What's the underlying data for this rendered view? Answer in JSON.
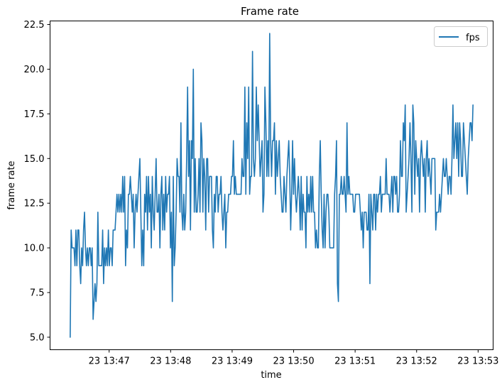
{
  "chart_data": {
    "type": "line",
    "title": "Frame rate",
    "xlabel": "time",
    "ylabel": "frame rate",
    "x_start_label": "23 13:46:22",
    "x_end_label": "23 13:52:55",
    "x_ticks": [
      "23 13:47",
      "23 13:48",
      "23 13:49",
      "23 13:50",
      "23 13:51",
      "23 13:52",
      "23 13:53"
    ],
    "y_ticks": [
      "5.0",
      "7.5",
      "10.0",
      "12.5",
      "15.0",
      "17.5",
      "20.0",
      "22.5"
    ],
    "ylim": [
      4.3,
      22.7
    ],
    "grid": false,
    "legend": {
      "position": "top-right",
      "entries": [
        "fps"
      ]
    },
    "series": [
      {
        "name": "fps",
        "color": "#1f77b4",
        "values": [
          5,
          11,
          10,
          10,
          10,
          9,
          11,
          9,
          11,
          11,
          9,
          8,
          10,
          9,
          11,
          12,
          10,
          9,
          10,
          9,
          10,
          10,
          9,
          10,
          6,
          7,
          8,
          7,
          8,
          12,
          9,
          9,
          9,
          9,
          11,
          8,
          10,
          9,
          10,
          9,
          11,
          9,
          10,
          10,
          9,
          11,
          11,
          11,
          12,
          13,
          12,
          13,
          12,
          13,
          12,
          14,
          12,
          14,
          9,
          11,
          10,
          13,
          13,
          14,
          13,
          12,
          13,
          10,
          12,
          13,
          12,
          13,
          14,
          15,
          12,
          9,
          11,
          9,
          13,
          12,
          14,
          11,
          14,
          12,
          13,
          10,
          14,
          12,
          11,
          13,
          15,
          12,
          12,
          13,
          10,
          13,
          14,
          11,
          13,
          11,
          14,
          12,
          13,
          13,
          14,
          10,
          12,
          7,
          14,
          9,
          10,
          12,
          15,
          14,
          14,
          12,
          17,
          12,
          11,
          13,
          11,
          12,
          15,
          19,
          14,
          16,
          11,
          16,
          15,
          20,
          12,
          15,
          12,
          12,
          13,
          15,
          12,
          17,
          16,
          12,
          15,
          14,
          11,
          15,
          15,
          12,
          14,
          14,
          14,
          11,
          10,
          13,
          12,
          14,
          14,
          12,
          13,
          13,
          14,
          12,
          11,
          12,
          13,
          10,
          12,
          12,
          13,
          13,
          13,
          14,
          14,
          16,
          13,
          14,
          13,
          13,
          13,
          13,
          13,
          13,
          15,
          14,
          14,
          19,
          13,
          17,
          15,
          19,
          13,
          14,
          14,
          21,
          15,
          14,
          15,
          19,
          16,
          18,
          16,
          14,
          15,
          16,
          12,
          13,
          19,
          17,
          14,
          16,
          14,
          22,
          16,
          14,
          16,
          16,
          17,
          13,
          16,
          14,
          15,
          16,
          14,
          13,
          12,
          12,
          14,
          13,
          12,
          14,
          15,
          16,
          14,
          11,
          13,
          16,
          13,
          15,
          13,
          12,
          13,
          14,
          13,
          11,
          14,
          11,
          13,
          12,
          12,
          10,
          14,
          12,
          13,
          12,
          14,
          12,
          14,
          12,
          12,
          10,
          11,
          10,
          10,
          14,
          16,
          13,
          11,
          10,
          13,
          10,
          12,
          13,
          13,
          12,
          10,
          10,
          10,
          10,
          10,
          13,
          14,
          16,
          8,
          7,
          13,
          13,
          14,
          13,
          13,
          14,
          13,
          12,
          17,
          13,
          14,
          13,
          13,
          13,
          13,
          12,
          12,
          13,
          13,
          13,
          13,
          13,
          12,
          11,
          12,
          10,
          12,
          12,
          12,
          11,
          11,
          13,
          8,
          13,
          12,
          11,
          13,
          13,
          11,
          13,
          12,
          13,
          13,
          14,
          12,
          13,
          13,
          13,
          13,
          15,
          13,
          13,
          13,
          12,
          13,
          14,
          12,
          14,
          14,
          13,
          14,
          12,
          12,
          13,
          16,
          14,
          14,
          17,
          16,
          18,
          12,
          13,
          14,
          15,
          17,
          15,
          12,
          18,
          17,
          13,
          16,
          15,
          14,
          15,
          12,
          15,
          16,
          15,
          14,
          15,
          12,
          15,
          16,
          14,
          15,
          14,
          13,
          15,
          15,
          15,
          15,
          11,
          12,
          12,
          12,
          13,
          12,
          13,
          14,
          15,
          14,
          14,
          15,
          14,
          13,
          14,
          14,
          13,
          15,
          18,
          15,
          16,
          17,
          15,
          17,
          14,
          17,
          16,
          14,
          14,
          17,
          16,
          15,
          14,
          13,
          15,
          16,
          17,
          17,
          16,
          18
        ]
      }
    ]
  }
}
